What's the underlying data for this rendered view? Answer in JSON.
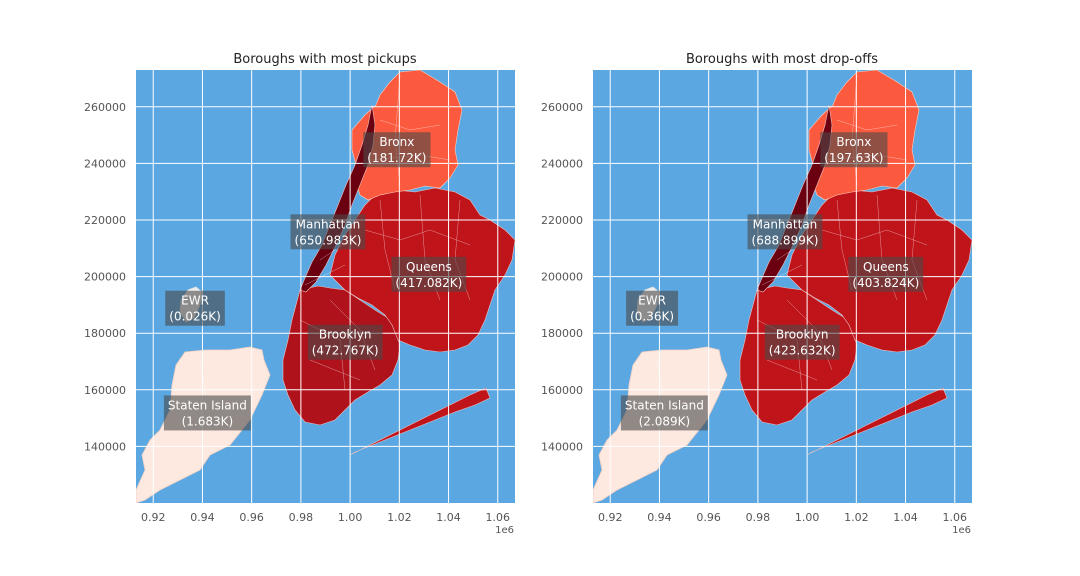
{
  "chart_data": [
    {
      "type": "map",
      "title": "Boroughs with most pickups",
      "x_ticks": [
        "0.92",
        "0.94",
        "0.96",
        "0.98",
        "1.00",
        "1.02",
        "1.04",
        "1.06"
      ],
      "x_tick_values": [
        920000,
        940000,
        960000,
        980000,
        1000000,
        1020000,
        1040000,
        1060000
      ],
      "x_offset_label": "1e6",
      "y_ticks": [
        "140000",
        "160000",
        "180000",
        "200000",
        "220000",
        "240000",
        "260000"
      ],
      "y_tick_values": [
        140000,
        160000,
        180000,
        200000,
        220000,
        240000,
        260000
      ],
      "xlim": [
        913000,
        1067000
      ],
      "ylim": [
        120000,
        273000
      ],
      "grid": true,
      "boroughs": [
        {
          "name": "Bronx",
          "count_label": "(181.72K)",
          "value_k": 181.72,
          "center": [
            1019000,
            245000
          ],
          "color": "#fb5a3e"
        },
        {
          "name": "Manhattan",
          "count_label": "(650.983K)",
          "value_k": 650.983,
          "center": [
            991000,
            216000
          ],
          "color": "#6b0010"
        },
        {
          "name": "Queens",
          "count_label": "(417.082K)",
          "value_k": 417.082,
          "center": [
            1032000,
            201000
          ],
          "color": "#c0141b"
        },
        {
          "name": "EWR",
          "count_label": "(0.026K)",
          "value_k": 0.026,
          "center": [
            937000,
            189000
          ],
          "color": "#f0f0f0"
        },
        {
          "name": "Brooklyn",
          "count_label": "(472.767K)",
          "value_k": 472.767,
          "center": [
            998000,
            177000
          ],
          "color": "#b0121b"
        },
        {
          "name": "Staten Island",
          "count_label": "(1.683K)",
          "value_k": 1.683,
          "center": [
            942000,
            152000
          ],
          "color": "#fde9e0"
        }
      ]
    },
    {
      "type": "map",
      "title": "Boroughs with most drop-offs",
      "x_ticks": [
        "0.92",
        "0.94",
        "0.96",
        "0.98",
        "1.00",
        "1.02",
        "1.04",
        "1.06"
      ],
      "x_tick_values": [
        920000,
        940000,
        960000,
        980000,
        1000000,
        1020000,
        1040000,
        1060000
      ],
      "x_offset_label": "1e6",
      "y_ticks": [
        "140000",
        "160000",
        "180000",
        "200000",
        "220000",
        "240000",
        "260000"
      ],
      "y_tick_values": [
        140000,
        160000,
        180000,
        200000,
        220000,
        240000,
        260000
      ],
      "xlim": [
        913000,
        1067000
      ],
      "ylim": [
        120000,
        273000
      ],
      "grid": true,
      "boroughs": [
        {
          "name": "Bronx",
          "count_label": "(197.63K)",
          "value_k": 197.63,
          "center": [
            1019000,
            245000
          ],
          "color": "#fb5a3e"
        },
        {
          "name": "Manhattan",
          "count_label": "(688.899K)",
          "value_k": 688.899,
          "center": [
            991000,
            216000
          ],
          "color": "#6b0010"
        },
        {
          "name": "Queens",
          "count_label": "(403.824K)",
          "value_k": 403.824,
          "center": [
            1032000,
            201000
          ],
          "color": "#c0141b"
        },
        {
          "name": "EWR",
          "count_label": "(0.36K)",
          "value_k": 0.36,
          "center": [
            937000,
            189000
          ],
          "color": "#f0f0f0"
        },
        {
          "name": "Brooklyn",
          "count_label": "(423.632K)",
          "value_k": 423.632,
          "center": [
            998000,
            177000
          ],
          "color": "#c0141b"
        },
        {
          "name": "Staten Island",
          "count_label": "(2.089K)",
          "value_k": 2.089,
          "center": [
            942000,
            152000
          ],
          "color": "#fde9e0"
        }
      ]
    }
  ],
  "colors": {
    "water": "#5aa7e2",
    "grid": "#ffffff",
    "label_box": "#4a4a4a",
    "tick_text": "#555555",
    "title_text": "#222222"
  }
}
